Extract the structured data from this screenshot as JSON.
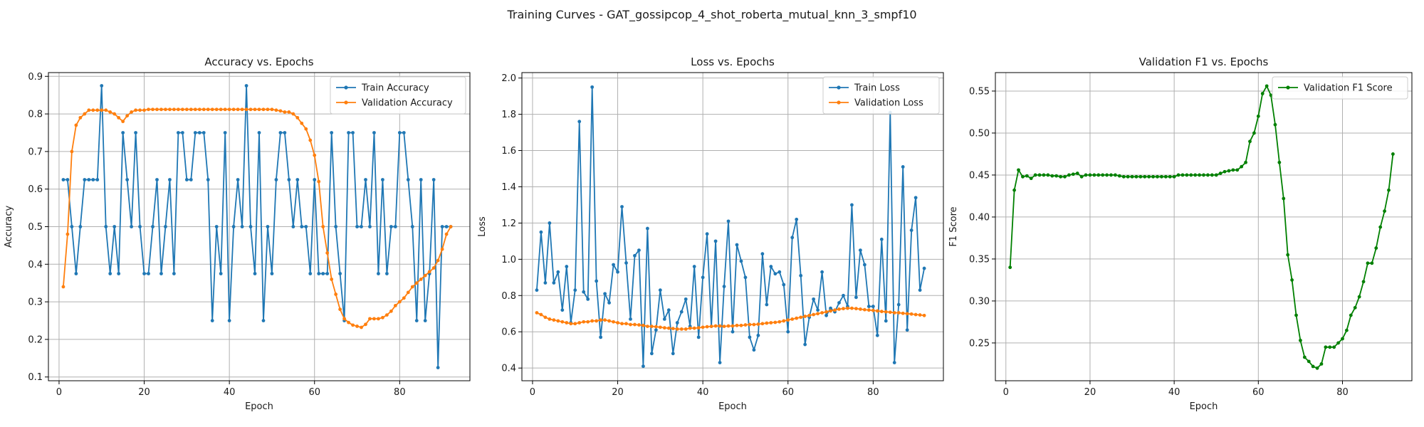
{
  "figure": {
    "suptitle": "Training Curves - GAT_gossipcop_4_shot_roberta_mutual_knn_3_smpf10"
  },
  "colors": {
    "blue": "#1f77b4",
    "orange": "#ff7f0e",
    "green": "#008000",
    "grid": "#b0b0b0"
  },
  "chart_data": [
    {
      "type": "line",
      "title": "Accuracy vs. Epochs",
      "xlabel": "Epoch",
      "ylabel": "Accuracy",
      "xlim": [
        -2.5,
        96.5
      ],
      "ylim": [
        0.09,
        0.91
      ],
      "xticks": [
        0,
        20,
        40,
        60,
        80
      ],
      "yticks": [
        0.1,
        0.2,
        0.3,
        0.4,
        0.5,
        0.6,
        0.7,
        0.8,
        0.9
      ],
      "grid": true,
      "legend": "top-right",
      "x": [
        1,
        2,
        3,
        4,
        5,
        6,
        7,
        8,
        9,
        10,
        11,
        12,
        13,
        14,
        15,
        16,
        17,
        18,
        19,
        20,
        21,
        22,
        23,
        24,
        25,
        26,
        27,
        28,
        29,
        30,
        31,
        32,
        33,
        34,
        35,
        36,
        37,
        38,
        39,
        40,
        41,
        42,
        43,
        44,
        45,
        46,
        47,
        48,
        49,
        50,
        51,
        52,
        53,
        54,
        55,
        56,
        57,
        58,
        59,
        60,
        61,
        62,
        63,
        64,
        65,
        66,
        67,
        68,
        69,
        70,
        71,
        72,
        73,
        74,
        75,
        76,
        77,
        78,
        79,
        80,
        81,
        82,
        83,
        84,
        85,
        86,
        87,
        88,
        89,
        90,
        91,
        92
      ],
      "series": [
        {
          "name": "Train Accuracy",
          "color": "#1f77b4",
          "values": [
            0.625,
            0.625,
            0.5,
            0.375,
            0.5,
            0.625,
            0.625,
            0.625,
            0.625,
            0.875,
            0.5,
            0.375,
            0.5,
            0.375,
            0.75,
            0.625,
            0.5,
            0.75,
            0.5,
            0.375,
            0.375,
            0.5,
            0.625,
            0.375,
            0.5,
            0.625,
            0.375,
            0.75,
            0.75,
            0.625,
            0.625,
            0.75,
            0.75,
            0.75,
            0.625,
            0.25,
            0.5,
            0.375,
            0.75,
            0.25,
            0.5,
            0.625,
            0.5,
            0.875,
            0.5,
            0.375,
            0.75,
            0.25,
            0.5,
            0.375,
            0.625,
            0.75,
            0.75,
            0.625,
            0.5,
            0.625,
            0.5,
            0.5,
            0.375,
            0.625,
            0.375,
            0.375,
            0.375,
            0.75,
            0.5,
            0.375,
            0.25,
            0.75,
            0.75,
            0.5,
            0.5,
            0.625,
            0.5,
            0.75,
            0.375,
            0.625,
            0.375,
            0.5,
            0.5,
            0.75,
            0.75,
            0.625,
            0.5,
            0.25,
            0.625,
            0.25,
            0.375,
            0.625,
            0.125,
            0.5,
            0.5,
            0.5
          ]
        },
        {
          "name": "Validation Accuracy",
          "color": "#ff7f0e",
          "values": [
            0.34,
            0.48,
            0.7,
            0.77,
            0.79,
            0.8,
            0.81,
            0.81,
            0.81,
            0.81,
            0.81,
            0.805,
            0.8,
            0.79,
            0.78,
            0.795,
            0.805,
            0.81,
            0.81,
            0.81,
            0.812,
            0.812,
            0.812,
            0.812,
            0.812,
            0.812,
            0.812,
            0.812,
            0.812,
            0.812,
            0.812,
            0.812,
            0.812,
            0.812,
            0.812,
            0.812,
            0.812,
            0.812,
            0.812,
            0.812,
            0.812,
            0.812,
            0.812,
            0.812,
            0.812,
            0.812,
            0.812,
            0.812,
            0.812,
            0.812,
            0.81,
            0.808,
            0.805,
            0.805,
            0.8,
            0.79,
            0.775,
            0.76,
            0.73,
            0.69,
            0.62,
            0.5,
            0.43,
            0.36,
            0.32,
            0.28,
            0.255,
            0.245,
            0.238,
            0.235,
            0.232,
            0.24,
            0.255,
            0.255,
            0.255,
            0.258,
            0.265,
            0.275,
            0.29,
            0.3,
            0.31,
            0.325,
            0.34,
            0.35,
            0.36,
            0.37,
            0.38,
            0.39,
            0.41,
            0.44,
            0.48,
            0.5
          ]
        }
      ]
    },
    {
      "type": "line",
      "title": "Loss vs. Epochs",
      "xlabel": "Epoch",
      "ylabel": "Loss",
      "xlim": [
        -2.5,
        96.5
      ],
      "ylim": [
        0.33,
        2.03
      ],
      "xticks": [
        0,
        20,
        40,
        60,
        80
      ],
      "yticks": [
        0.4,
        0.6,
        0.8,
        1.0,
        1.2,
        1.4,
        1.6,
        1.8,
        2.0
      ],
      "grid": true,
      "legend": "top-right",
      "x": [
        1,
        2,
        3,
        4,
        5,
        6,
        7,
        8,
        9,
        10,
        11,
        12,
        13,
        14,
        15,
        16,
        17,
        18,
        19,
        20,
        21,
        22,
        23,
        24,
        25,
        26,
        27,
        28,
        29,
        30,
        31,
        32,
        33,
        34,
        35,
        36,
        37,
        38,
        39,
        40,
        41,
        42,
        43,
        44,
        45,
        46,
        47,
        48,
        49,
        50,
        51,
        52,
        53,
        54,
        55,
        56,
        57,
        58,
        59,
        60,
        61,
        62,
        63,
        64,
        65,
        66,
        67,
        68,
        69,
        70,
        71,
        72,
        73,
        74,
        75,
        76,
        77,
        78,
        79,
        80,
        81,
        82,
        83,
        84,
        85,
        86,
        87,
        88,
        89,
        90,
        91,
        92
      ],
      "series": [
        {
          "name": "Train Loss",
          "color": "#1f77b4",
          "values": [
            0.83,
            1.15,
            0.87,
            1.2,
            0.87,
            0.93,
            0.72,
            0.96,
            0.65,
            0.83,
            1.76,
            0.82,
            0.78,
            1.95,
            0.88,
            0.57,
            0.81,
            0.76,
            0.97,
            0.93,
            1.29,
            0.98,
            0.67,
            1.02,
            1.05,
            0.41,
            1.17,
            0.48,
            0.61,
            0.83,
            0.67,
            0.72,
            0.48,
            0.65,
            0.71,
            0.78,
            0.63,
            0.96,
            0.57,
            0.9,
            1.14,
            0.63,
            1.1,
            0.43,
            0.85,
            1.21,
            0.6,
            1.08,
            0.99,
            0.9,
            0.57,
            0.5,
            0.58,
            1.03,
            0.75,
            0.96,
            0.92,
            0.93,
            0.86,
            0.6,
            1.12,
            1.22,
            0.91,
            0.53,
            0.68,
            0.78,
            0.72,
            0.93,
            0.69,
            0.73,
            0.71,
            0.76,
            0.8,
            0.74,
            1.3,
            0.79,
            1.05,
            0.97,
            0.74,
            0.74,
            0.58,
            1.11,
            0.66,
            1.81,
            0.43,
            0.75,
            1.51,
            0.61,
            1.16,
            1.34,
            0.83,
            0.95
          ]
        },
        {
          "name": "Validation Loss",
          "color": "#ff7f0e",
          "values": [
            0.705,
            0.695,
            0.68,
            0.67,
            0.665,
            0.66,
            0.655,
            0.65,
            0.645,
            0.645,
            0.65,
            0.655,
            0.655,
            0.66,
            0.66,
            0.665,
            0.665,
            0.66,
            0.655,
            0.65,
            0.645,
            0.645,
            0.64,
            0.64,
            0.638,
            0.635,
            0.63,
            0.63,
            0.628,
            0.625,
            0.622,
            0.62,
            0.618,
            0.615,
            0.615,
            0.615,
            0.62,
            0.62,
            0.622,
            0.625,
            0.628,
            0.63,
            0.632,
            0.632,
            0.63,
            0.632,
            0.632,
            0.635,
            0.635,
            0.638,
            0.64,
            0.64,
            0.642,
            0.645,
            0.648,
            0.65,
            0.652,
            0.655,
            0.66,
            0.665,
            0.67,
            0.675,
            0.68,
            0.685,
            0.69,
            0.695,
            0.7,
            0.705,
            0.71,
            0.715,
            0.72,
            0.725,
            0.728,
            0.73,
            0.73,
            0.728,
            0.725,
            0.722,
            0.72,
            0.718,
            0.715,
            0.712,
            0.71,
            0.708,
            0.705,
            0.705,
            0.702,
            0.7,
            0.698,
            0.695,
            0.693,
            0.69
          ]
        }
      ]
    },
    {
      "type": "line",
      "title": "Validation F1 vs. Epochs",
      "xlabel": "Epoch",
      "ylabel": "F1 Score",
      "xlim": [
        -2.5,
        96.5
      ],
      "ylim": [
        0.205,
        0.572
      ],
      "xticks": [
        0,
        20,
        40,
        60,
        80
      ],
      "yticks": [
        0.25,
        0.3,
        0.35,
        0.4,
        0.45,
        0.5,
        0.55
      ],
      "grid": true,
      "legend": "top-right",
      "x": [
        1,
        2,
        3,
        4,
        5,
        6,
        7,
        8,
        9,
        10,
        11,
        12,
        13,
        14,
        15,
        16,
        17,
        18,
        19,
        20,
        21,
        22,
        23,
        24,
        25,
        26,
        27,
        28,
        29,
        30,
        31,
        32,
        33,
        34,
        35,
        36,
        37,
        38,
        39,
        40,
        41,
        42,
        43,
        44,
        45,
        46,
        47,
        48,
        49,
        50,
        51,
        52,
        53,
        54,
        55,
        56,
        57,
        58,
        59,
        60,
        61,
        62,
        63,
        64,
        65,
        66,
        67,
        68,
        69,
        70,
        71,
        72,
        73,
        74,
        75,
        76,
        77,
        78,
        79,
        80,
        81,
        82,
        83,
        84,
        85,
        86,
        87,
        88,
        89,
        90,
        91,
        92
      ],
      "series": [
        {
          "name": "Validation F1 Score",
          "color": "#008000",
          "values": [
            0.34,
            0.432,
            0.456,
            0.448,
            0.449,
            0.446,
            0.45,
            0.45,
            0.45,
            0.45,
            0.449,
            0.449,
            0.448,
            0.448,
            0.45,
            0.451,
            0.452,
            0.448,
            0.45,
            0.45,
            0.45,
            0.45,
            0.45,
            0.45,
            0.45,
            0.45,
            0.449,
            0.448,
            0.448,
            0.448,
            0.448,
            0.448,
            0.448,
            0.448,
            0.448,
            0.448,
            0.448,
            0.448,
            0.448,
            0.448,
            0.45,
            0.45,
            0.45,
            0.45,
            0.45,
            0.45,
            0.45,
            0.45,
            0.45,
            0.45,
            0.452,
            0.454,
            0.455,
            0.456,
            0.456,
            0.46,
            0.465,
            0.49,
            0.5,
            0.52,
            0.547,
            0.556,
            0.545,
            0.51,
            0.465,
            0.422,
            0.355,
            0.325,
            0.283,
            0.253,
            0.233,
            0.228,
            0.222,
            0.22,
            0.225,
            0.245,
            0.245,
            0.245,
            0.25,
            0.255,
            0.265,
            0.283,
            0.292,
            0.305,
            0.323,
            0.345,
            0.345,
            0.363,
            0.388,
            0.407,
            0.432,
            0.475
          ]
        }
      ]
    }
  ]
}
